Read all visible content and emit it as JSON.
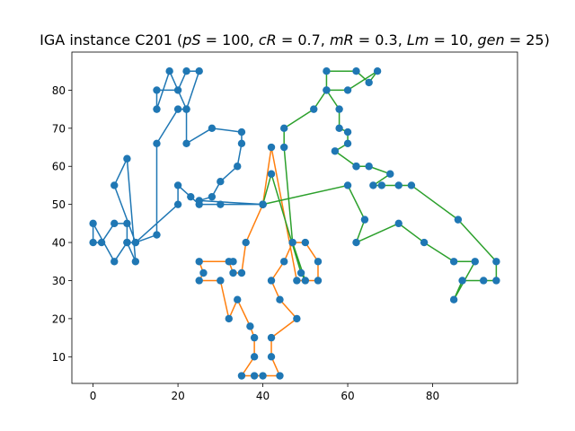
{
  "chart_data": {
    "type": "line",
    "title": "IGA instance C201 (pS = 100, cR = 0.7, mR = 0.3, Lm = 10, gen = 25)",
    "title_parts": [
      {
        "text": "IGA instance C201 (",
        "italic": false
      },
      {
        "text": "pS",
        "italic": true
      },
      {
        "text": " = 100, ",
        "italic": false
      },
      {
        "text": "cR",
        "italic": true
      },
      {
        "text": " = 0.7, ",
        "italic": false
      },
      {
        "text": "mR",
        "italic": true
      },
      {
        "text": " = 0.3, ",
        "italic": false
      },
      {
        "text": "Lm",
        "italic": true
      },
      {
        "text": " = 10, ",
        "italic": false
      },
      {
        "text": "gen",
        "italic": true
      },
      {
        "text": " = 25)",
        "italic": false
      }
    ],
    "xlabel": "",
    "ylabel": "",
    "xlim": [
      -5,
      100
    ],
    "ylim": [
      3,
      90
    ],
    "xticks": [
      0,
      20,
      40,
      60,
      80
    ],
    "yticks": [
      10,
      20,
      30,
      40,
      50,
      60,
      70,
      80
    ],
    "grid": false,
    "depot": [
      40,
      50
    ],
    "marker_color": "#1f77b4",
    "series": [
      {
        "color": "#1f77b4",
        "x": [
          40,
          30,
          25,
          23,
          20,
          20,
          10,
          8,
          8,
          5,
          2,
          0,
          0,
          5,
          8,
          10,
          8,
          5,
          10,
          15,
          15,
          20,
          22,
          25,
          22,
          20,
          15,
          15,
          18,
          22,
          22,
          28,
          35,
          35,
          34,
          30,
          28,
          25,
          40
        ],
        "y": [
          50,
          50,
          50,
          52,
          55,
          50,
          40,
          40,
          45,
          45,
          40,
          40,
          45,
          35,
          40,
          35,
          62,
          55,
          40,
          42,
          66,
          75,
          75,
          85,
          85,
          80,
          80,
          75,
          85,
          75,
          66,
          70,
          69,
          66,
          60,
          56,
          52,
          51,
          50
        ]
      },
      {
        "color": "#ff7f0e",
        "x": [
          40,
          36,
          35,
          33,
          32,
          33,
          25,
          26,
          25,
          30,
          32,
          34,
          37,
          38,
          38,
          35,
          38,
          40,
          44,
          42,
          42,
          48,
          44,
          42,
          45,
          47,
          50,
          53,
          53,
          48,
          42,
          40
        ],
        "y": [
          50,
          40,
          32,
          32,
          35,
          35,
          35,
          32,
          30,
          30,
          20,
          25,
          18,
          15,
          10,
          5,
          5,
          5,
          5,
          10,
          15,
          20,
          25,
          30,
          35,
          40,
          40,
          35,
          30,
          30,
          65,
          50
        ]
      },
      {
        "color": "#2ca02c",
        "x": [
          40,
          42,
          49,
          50,
          47,
          45,
          45,
          52,
          55,
          55,
          62,
          65,
          67,
          60,
          55,
          58,
          58,
          60,
          60,
          57,
          62,
          62,
          65,
          70,
          66,
          68,
          72,
          75,
          86,
          95,
          95,
          92,
          87,
          85,
          90,
          85,
          78,
          72,
          62,
          64,
          60,
          40
        ],
        "y": [
          50,
          58,
          32,
          30,
          40,
          65,
          70,
          75,
          80,
          85,
          85,
          82,
          85,
          80,
          80,
          75,
          70,
          69,
          66,
          64,
          60,
          60,
          60,
          58,
          55,
          55,
          55,
          55,
          46,
          35,
          30,
          30,
          30,
          25,
          35,
          35,
          40,
          45,
          40,
          46,
          55,
          50
        ]
      }
    ]
  }
}
